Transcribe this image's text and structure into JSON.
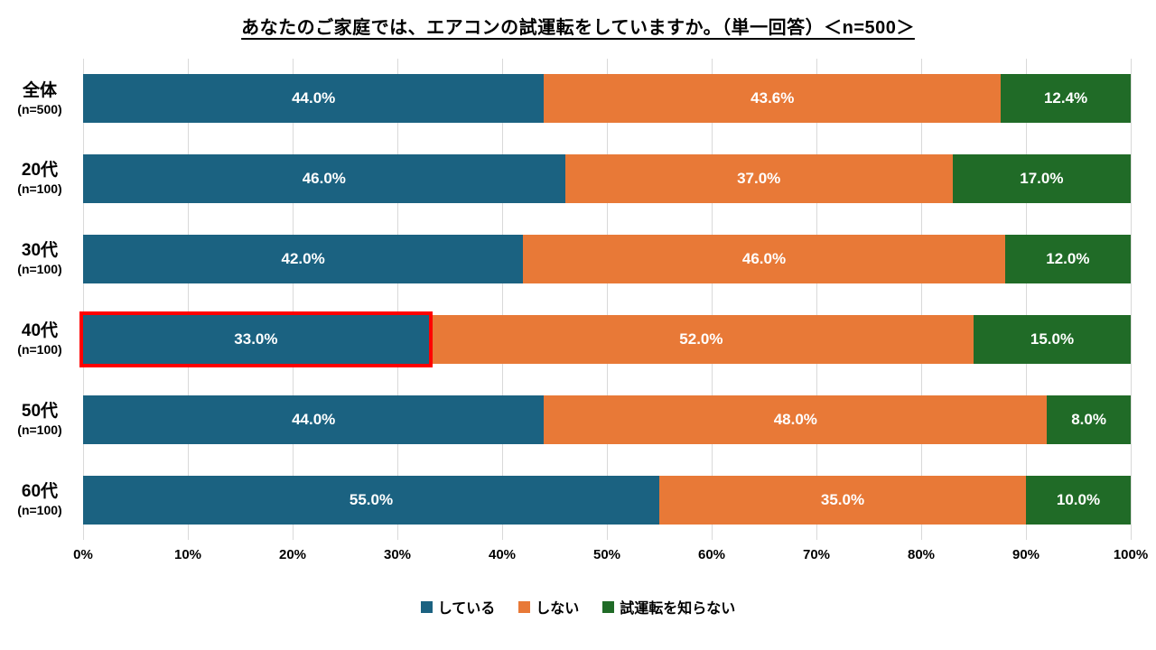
{
  "title": "あなたのご家庭では、エアコンの試運転をしていますか。（単一回答）＜n=500＞",
  "chart_data": {
    "type": "bar",
    "orientation": "horizontal",
    "stacked": true,
    "unit": "%",
    "xlim": [
      0,
      100
    ],
    "xticks": [
      "0%",
      "10%",
      "20%",
      "30%",
      "40%",
      "50%",
      "60%",
      "70%",
      "80%",
      "90%",
      "100%"
    ],
    "grid": true,
    "legend_position": "bottom",
    "categories": [
      "全体",
      "20代",
      "30代",
      "40代",
      "50代",
      "60代"
    ],
    "category_sublabels": [
      "(n=500)",
      "(n=100)",
      "(n=100)",
      "(n=100)",
      "(n=100)",
      "(n=100)"
    ],
    "series": [
      {
        "name": "している",
        "color": "#1B6281",
        "values": [
          44.0,
          46.0,
          42.0,
          33.0,
          44.0,
          55.0
        ]
      },
      {
        "name": "しない",
        "color": "#E87937",
        "values": [
          43.6,
          37.0,
          46.0,
          52.0,
          48.0,
          35.0
        ]
      },
      {
        "name": "試運転を知らない",
        "color": "#206B27",
        "values": [
          12.4,
          17.0,
          12.0,
          15.0,
          8.0,
          10.0
        ]
      }
    ],
    "value_label_decimals": 1,
    "value_label_suffix": "%",
    "highlight": {
      "category_index": 3,
      "series_index": 0,
      "border_color": "#FF0000"
    }
  },
  "colors": {
    "background": "#FFFFFF",
    "gridline": "#D9D9D9",
    "bar_label": "#FFFFFF",
    "text": "#000000"
  }
}
